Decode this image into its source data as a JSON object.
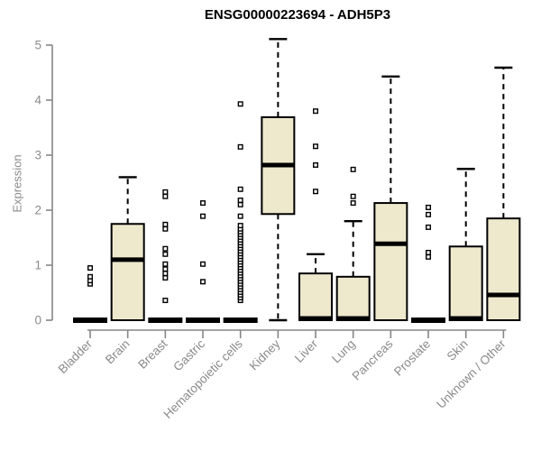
{
  "chart_data": {
    "type": "boxplot",
    "title": "ENSG00000223694 - ADH5P3",
    "ylabel": "Expression",
    "xlabel": "",
    "ylim": [
      0,
      5
    ],
    "yticks": [
      0,
      1,
      2,
      3,
      4,
      5
    ],
    "grid": false,
    "legend": "none",
    "colors": {
      "box_fill": "#EEE8CD",
      "box_stroke": "#000000",
      "median": "#000000",
      "whisker": "#000000",
      "outlier_stroke": "#000000",
      "outlier_fill": "#ffffff",
      "axis": "#868686",
      "tick_label": "#8a8a8a",
      "title": "#000000"
    },
    "categories": [
      "Bladder",
      "Brain",
      "Breast",
      "Gastric",
      "Hematopoietic cells",
      "Kidney",
      "Liver",
      "Lung",
      "Pancreas",
      "Prostate",
      "Skin",
      "Unknown / Other"
    ],
    "boxes": [
      {
        "category": "Bladder",
        "q1": 0,
        "median": 0,
        "q3": 0,
        "whisker_low": 0,
        "whisker_high": 0,
        "outliers": [
          0.66,
          0.72,
          0.79,
          0.95
        ]
      },
      {
        "category": "Brain",
        "q1": 0,
        "median": 1.1,
        "q3": 1.75,
        "whisker_low": 0,
        "whisker_high": 2.6,
        "outliers": []
      },
      {
        "category": "Breast",
        "q1": 0,
        "median": 0,
        "q3": 0,
        "whisker_low": 0,
        "whisker_high": 0,
        "outliers": [
          0.36,
          0.77,
          0.85,
          0.93,
          1.02,
          1.2,
          1.3,
          1.66,
          1.74,
          2.25,
          2.33
        ]
      },
      {
        "category": "Gastric",
        "q1": 0,
        "median": 0,
        "q3": 0,
        "whisker_low": 0,
        "whisker_high": 0,
        "outliers": [
          0.7,
          1.02,
          1.89,
          2.13
        ]
      },
      {
        "category": "Hematopoietic cells",
        "q1": 0,
        "median": 0,
        "q3": 0,
        "whisker_low": 0,
        "whisker_high": 0,
        "outliers": [
          0.36,
          0.41,
          0.46,
          0.51,
          0.56,
          0.61,
          0.66,
          0.71,
          0.76,
          0.81,
          0.86,
          0.91,
          0.96,
          1.01,
          1.06,
          1.11,
          1.16,
          1.21,
          1.26,
          1.31,
          1.36,
          1.41,
          1.46,
          1.51,
          1.56,
          1.61,
          1.66,
          1.72,
          1.89,
          2.1,
          2.18,
          2.38,
          3.15,
          3.93
        ]
      },
      {
        "category": "Kidney",
        "q1": 1.93,
        "median": 2.82,
        "q3": 3.69,
        "whisker_low": 0,
        "whisker_high": 5.11,
        "outliers": []
      },
      {
        "category": "Liver",
        "q1": 0,
        "median": 0,
        "q3": 0.85,
        "whisker_low": 0,
        "whisker_high": 1.2,
        "outliers": [
          2.34,
          2.82,
          3.16,
          3.8
        ]
      },
      {
        "category": "Lung",
        "q1": 0,
        "median": 0,
        "q3": 0.79,
        "whisker_low": 0,
        "whisker_high": 1.8,
        "outliers": [
          2.13,
          2.25,
          2.74
        ]
      },
      {
        "category": "Pancreas",
        "q1": 0,
        "median": 1.39,
        "q3": 2.13,
        "whisker_low": 0,
        "whisker_high": 4.43,
        "outliers": []
      },
      {
        "category": "Prostate",
        "q1": 0,
        "median": 0,
        "q3": 0,
        "whisker_low": 0,
        "whisker_high": 0,
        "outliers": [
          1.15,
          1.23,
          1.69,
          1.92,
          2.05
        ]
      },
      {
        "category": "Skin",
        "q1": 0,
        "median": 0,
        "q3": 1.34,
        "whisker_low": 0,
        "whisker_high": 2.75,
        "outliers": []
      },
      {
        "category": "Unknown / Other",
        "q1": 0,
        "median": 0.46,
        "q3": 1.85,
        "whisker_low": 0,
        "whisker_high": 4.59,
        "outliers": []
      }
    ]
  }
}
